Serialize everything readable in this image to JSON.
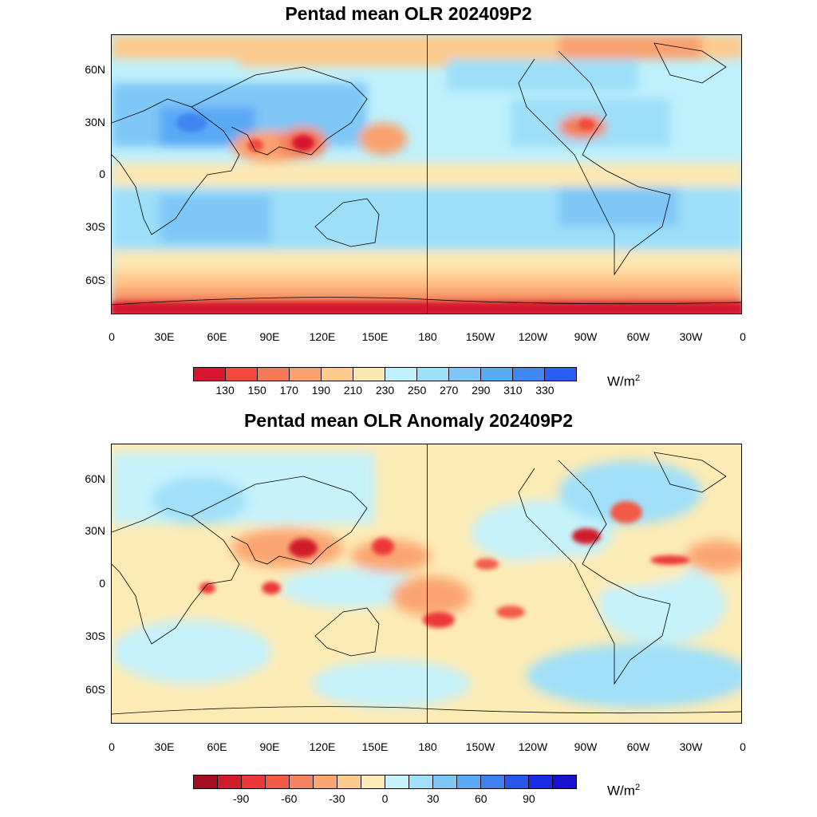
{
  "panels": [
    {
      "title": "Pentad mean OLR 202409P2",
      "lat_labels": [
        "60N",
        "30N",
        "0",
        "30S",
        "60S"
      ],
      "lon_labels": [
        "0",
        "30E",
        "60E",
        "90E",
        "120E",
        "150E",
        "180",
        "150W",
        "120W",
        "90W",
        "60W",
        "30W",
        "0"
      ],
      "colorbar": {
        "colors": [
          "#d7172f",
          "#f14a3c",
          "#f67a57",
          "#fba16e",
          "#fdcb8e",
          "#fde8b3",
          "#bff0fb",
          "#9ddff8",
          "#7ec7f7",
          "#5aa9f5",
          "#4186f2",
          "#2a5df0"
        ],
        "labels": [
          "130",
          "150",
          "170",
          "190",
          "210",
          "230",
          "250",
          "270",
          "290",
          "310",
          "330"
        ],
        "units": "W/m",
        "units_sup": "2"
      }
    },
    {
      "title": "Pentad mean OLR Anomaly 202409P2",
      "lat_labels": [
        "60N",
        "30N",
        "0",
        "30S",
        "60S"
      ],
      "lon_labels": [
        "0",
        "30E",
        "60E",
        "90E",
        "120E",
        "150E",
        "180",
        "150W",
        "120W",
        "90W",
        "60W",
        "30W",
        "0"
      ],
      "colorbar": {
        "colors": [
          "#a50d23",
          "#d01c2b",
          "#ec3838",
          "#f25a48",
          "#f6835f",
          "#fba671",
          "#fdcb8e",
          "#fdebb5",
          "#c6f2fb",
          "#a1e0f8",
          "#7fc8f6",
          "#5ba8f4",
          "#3f82ef",
          "#2856ea",
          "#1a2ce2",
          "#1a10d0"
        ],
        "labels": [
          "-90",
          "-60",
          "-30",
          "0",
          "30",
          "60",
          "90"
        ],
        "units": "W/m",
        "units_sup": "2"
      }
    }
  ]
}
